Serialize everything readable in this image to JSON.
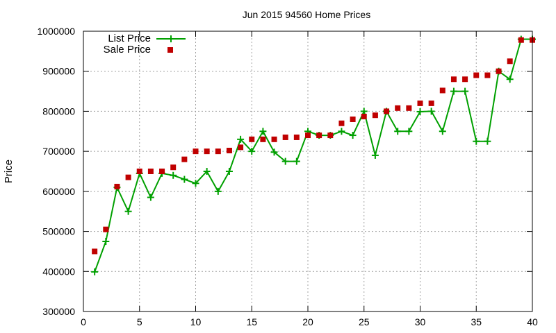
{
  "chart_data": {
    "type": "line",
    "title": "Jun 2015 94560 Home Prices",
    "xlabel": "",
    "ylabel": "Price",
    "xlim": [
      0,
      40
    ],
    "ylim": [
      300000,
      1000000
    ],
    "xticks": [
      0,
      5,
      10,
      15,
      20,
      25,
      30,
      35,
      40
    ],
    "yticks": [
      300000,
      400000,
      500000,
      600000,
      700000,
      800000,
      900000,
      1000000
    ],
    "grid": true,
    "legend_position": "top-left",
    "series": [
      {
        "name": "List Price",
        "style": "line+plus",
        "color": "#00a000",
        "x": [
          1,
          2,
          3,
          4,
          5,
          6,
          7,
          8,
          9,
          10,
          11,
          12,
          13,
          14,
          15,
          16,
          17,
          18,
          19,
          20,
          21,
          22,
          23,
          24,
          25,
          26,
          27,
          28,
          29,
          30,
          31,
          32,
          33,
          34,
          35,
          36,
          37,
          38,
          39,
          40
        ],
        "values": [
          399000,
          475000,
          610000,
          550000,
          645000,
          585000,
          645000,
          640000,
          630000,
          620000,
          650000,
          600000,
          650000,
          730000,
          700000,
          750000,
          698000,
          675000,
          675000,
          750000,
          740000,
          740000,
          750000,
          740000,
          800000,
          690000,
          800000,
          750000,
          750000,
          799000,
          800000,
          750000,
          850000,
          850000,
          725000,
          725000,
          900000,
          880000,
          980000,
          980000
        ]
      },
      {
        "name": "Sale Price",
        "style": "square-markers",
        "color": "#c00000",
        "x": [
          1,
          2,
          3,
          4,
          5,
          6,
          7,
          8,
          9,
          10,
          11,
          12,
          13,
          14,
          15,
          16,
          17,
          18,
          19,
          20,
          21,
          22,
          23,
          24,
          25,
          26,
          27,
          28,
          29,
          30,
          31,
          32,
          33,
          34,
          35,
          36,
          37,
          38,
          39,
          40
        ],
        "values": [
          450000,
          505000,
          612000,
          635000,
          650000,
          650000,
          650000,
          660000,
          680000,
          700000,
          700000,
          700000,
          702000,
          710000,
          730000,
          730000,
          730000,
          735000,
          735000,
          740000,
          740000,
          740000,
          770000,
          780000,
          787000,
          790000,
          800000,
          808000,
          808000,
          820000,
          820000,
          852000,
          880000,
          880000,
          890000,
          890000,
          900000,
          925000,
          978000,
          978000
        ]
      }
    ]
  }
}
